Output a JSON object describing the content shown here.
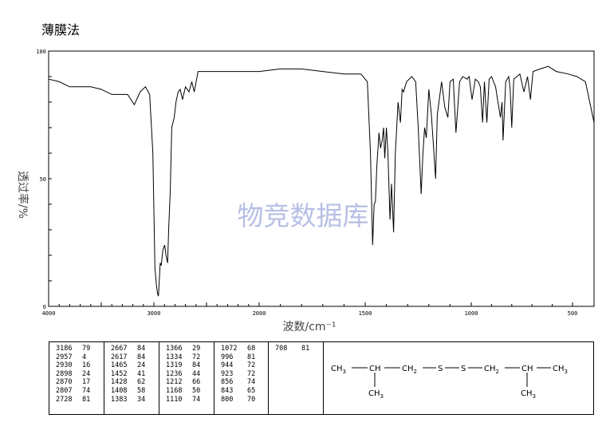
{
  "page": {
    "method_title": "薄膜法",
    "watermark": "物竞数据库"
  },
  "chart_data": {
    "type": "line",
    "title": "",
    "xlabel": "波数/cm⁻¹",
    "ylabel": "透过率/%",
    "xlim": [
      4000,
      400
    ],
    "ylim": [
      0,
      100
    ],
    "x_ticks": [
      "4000",
      "3000",
      "2000",
      "1500",
      "1000",
      "500"
    ],
    "y_ticks": [
      "0",
      "50",
      "100"
    ],
    "grid": false,
    "series": [
      {
        "x": [
          4000,
          3900,
          3800,
          3600,
          3500,
          3400,
          3250,
          3186,
          3130,
          3080,
          3040,
          3010,
          2990,
          2975,
          2965,
          2957,
          2950,
          2940,
          2930,
          2915,
          2898,
          2885,
          2875,
          2870,
          2860,
          2845,
          2830,
          2807,
          2790,
          2770,
          2750,
          2728,
          2700,
          2667,
          2640,
          2617,
          2580,
          2400,
          2200,
          2000,
          1900,
          1800,
          1700,
          1600,
          1520,
          1490,
          1475,
          1465,
          1458,
          1452,
          1445,
          1435,
          1428,
          1420,
          1413,
          1408,
          1400,
          1393,
          1383,
          1376,
          1366,
          1358,
          1345,
          1334,
          1326,
          1319,
          1305,
          1280,
          1262,
          1250,
          1236,
          1228,
          1220,
          1212,
          1200,
          1188,
          1176,
          1168,
          1160,
          1140,
          1125,
          1110,
          1100,
          1085,
          1072,
          1055,
          1040,
          1020,
          1010,
          996,
          980,
          965,
          955,
          944,
          935,
          923,
          912,
          900,
          880,
          868,
          856,
          848,
          843,
          830,
          815,
          808,
          800,
          790,
          760,
          740,
          722,
          708,
          695,
          660,
          620,
          580,
          520,
          480,
          440,
          420,
          400
        ],
        "y": [
          89,
          88,
          86,
          86,
          85,
          83,
          83,
          79,
          84,
          86,
          83,
          60,
          15,
          8,
          5,
          4,
          9,
          17,
          16,
          22,
          24,
          20,
          18,
          17,
          30,
          45,
          70,
          74,
          80,
          84,
          85,
          81,
          86,
          84,
          88,
          84,
          92,
          92,
          92,
          92,
          93,
          93,
          92,
          91,
          91,
          88,
          60,
          24,
          40,
          41,
          55,
          68,
          62,
          65,
          70,
          58,
          70,
          60,
          34,
          48,
          29,
          60,
          80,
          72,
          85,
          84,
          88,
          90,
          88,
          70,
          44,
          60,
          70,
          66,
          85,
          75,
          60,
          50,
          75,
          88,
          78,
          74,
          88,
          89,
          68,
          88,
          90,
          89,
          90,
          81,
          89,
          88,
          86,
          72,
          88,
          72,
          89,
          90,
          86,
          80,
          74,
          80,
          65,
          88,
          90,
          85,
          70,
          89,
          91,
          84,
          90,
          81,
          92,
          93,
          94,
          92,
          91,
          90,
          88,
          80,
          72
        ]
      }
    ]
  },
  "peak_table": {
    "columns": [
      [
        [
          "3186",
          "79"
        ],
        [
          "2957",
          "4"
        ],
        [
          "2930",
          "16"
        ],
        [
          "2898",
          "24"
        ],
        [
          "2870",
          "17"
        ],
        [
          "2807",
          "74"
        ],
        [
          "2728",
          "81"
        ]
      ],
      [
        [
          "2667",
          "84"
        ],
        [
          "2617",
          "84"
        ],
        [
          "1465",
          "24"
        ],
        [
          "1452",
          "41"
        ],
        [
          "1428",
          "62"
        ],
        [
          "1408",
          "58"
        ],
        [
          "1383",
          "34"
        ]
      ],
      [
        [
          "1366",
          "29"
        ],
        [
          "1334",
          "72"
        ],
        [
          "1319",
          "84"
        ],
        [
          "1236",
          "44"
        ],
        [
          "1212",
          "66"
        ],
        [
          "1168",
          "50"
        ],
        [
          "1110",
          "74"
        ]
      ],
      [
        [
          "1072",
          "68"
        ],
        [
          "996",
          "81"
        ],
        [
          "944",
          "72"
        ],
        [
          "923",
          "72"
        ],
        [
          "856",
          "74"
        ],
        [
          "843",
          "65"
        ],
        [
          "800",
          "70"
        ]
      ],
      [
        [
          "708",
          "81"
        ]
      ]
    ]
  },
  "structure": {
    "ch3_left": "CH",
    "ch_left": "CH",
    "ch2_left": "CH",
    "s1": "S",
    "s2": "S",
    "ch2_right": "CH",
    "ch_right": "CH",
    "ch3_right": "CH",
    "branch_left": "CH",
    "branch_right": "CH",
    "sub3": "3",
    "sub2": "2"
  }
}
